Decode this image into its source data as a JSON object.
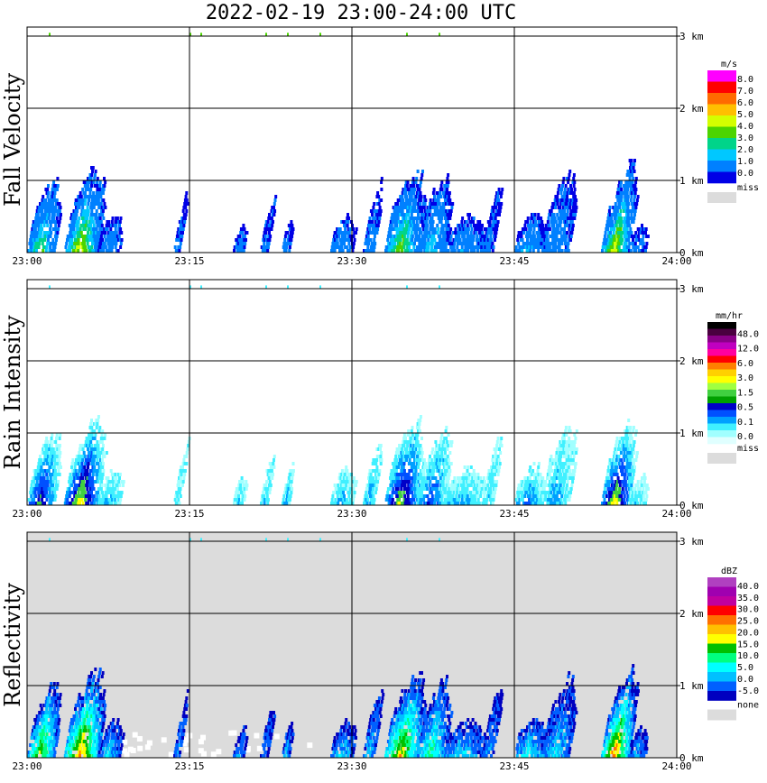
{
  "header": {
    "title": "2022-02-19   23:00-24:00 UTC"
  },
  "chart_data": [
    {
      "type": "heatmap",
      "title": "Fall Velocity",
      "x_ticks": [
        "23:00",
        "23:15",
        "23:30",
        "23:45",
        "24:00"
      ],
      "y_ticks": [
        "0 km",
        "1 km",
        "2 km",
        "3 km"
      ],
      "xlim": [
        "23:00",
        "24:00"
      ],
      "ylim_km": [
        0,
        3.1
      ],
      "grid": true,
      "background": "white",
      "legend": {
        "unit": "m/s",
        "labels": [
          "8.0",
          "7.0",
          "6.0",
          "5.0",
          "4.0",
          "3.0",
          "2.0",
          "1.0",
          "0.0"
        ],
        "colors": [
          "#ff00ff",
          "#ff0000",
          "#ff6a00",
          "#ffbf00",
          "#d4ff00",
          "#4cd400",
          "#00d48a",
          "#00c8ff",
          "#0080ff",
          "#0000e6"
        ],
        "miss_label": "miss",
        "miss_color": "#dcdcdc"
      }
    },
    {
      "type": "heatmap",
      "title": "Rain Intensity",
      "x_ticks": [
        "23:00",
        "23:15",
        "23:30",
        "23:45",
        "24:00"
      ],
      "y_ticks": [
        "0 km",
        "1 km",
        "2 km",
        "3 km"
      ],
      "xlim": [
        "23:00",
        "24:00"
      ],
      "ylim_km": [
        0,
        3.1
      ],
      "grid": true,
      "background": "white",
      "legend": {
        "unit": "mm/hr",
        "labels": [
          "48.0",
          "12.0",
          "6.0",
          "3.0",
          "1.5",
          "0.5",
          "0.1",
          "0.0"
        ],
        "colors": [
          "#000000",
          "#4a0040",
          "#8a0088",
          "#c000c0",
          "#ff00a0",
          "#ff0000",
          "#ff8000",
          "#ffd000",
          "#ffff00",
          "#a0ff40",
          "#40d040",
          "#00a000",
          "#0000c8",
          "#0050ff",
          "#00a0ff",
          "#40f0ff",
          "#a0ffff",
          "#e0ffff"
        ],
        "miss_label": "miss",
        "miss_color": "#dcdcdc"
      }
    },
    {
      "type": "heatmap",
      "title": "Reflectivity",
      "x_ticks": [
        "23:00",
        "23:15",
        "23:30",
        "23:45",
        "24:00"
      ],
      "y_ticks": [
        "0 km",
        "1 km",
        "2 km",
        "3 km"
      ],
      "xlim": [
        "23:00",
        "24:00"
      ],
      "ylim_km": [
        0,
        3.1
      ],
      "grid": true,
      "background": "#dcdcdc",
      "legend": {
        "unit": "dBZ",
        "labels": [
          "40.0",
          "35.0",
          "30.0",
          "25.0",
          "20.0",
          "15.0",
          "10.0",
          "5.0",
          "0.0",
          "-5.0"
        ],
        "colors": [
          "#b040c0",
          "#a000b0",
          "#c000a0",
          "#ff0000",
          "#ff7000",
          "#ffc000",
          "#ffff00",
          "#00c000",
          "#00ff80",
          "#00ffff",
          "#00c0ff",
          "#0060ff",
          "#0000c0"
        ],
        "none_label": "none",
        "none_color": "#dcdcdc"
      }
    }
  ]
}
